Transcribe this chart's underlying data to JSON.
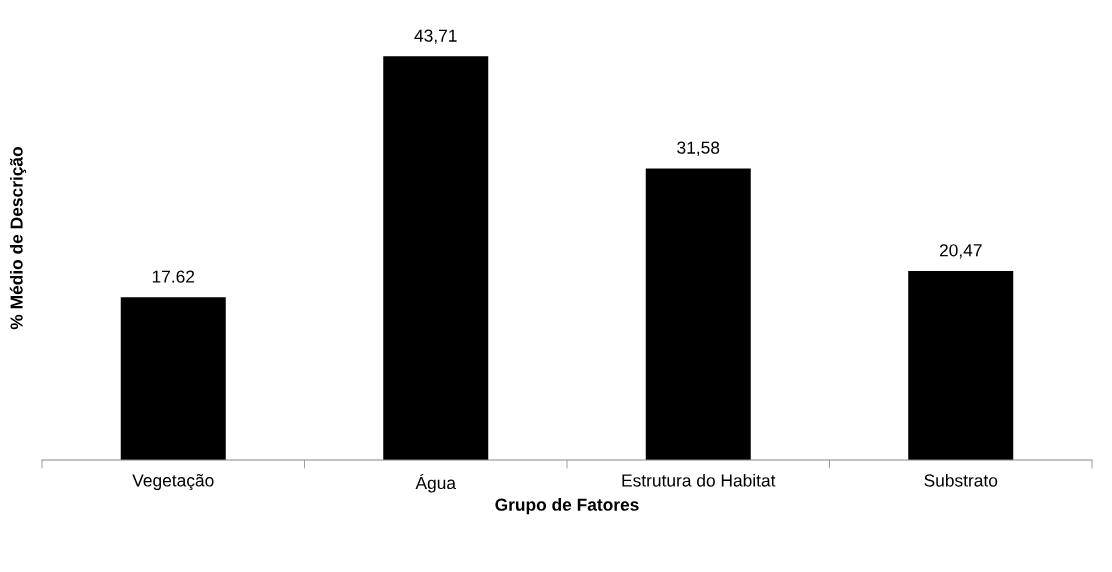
{
  "chart_data": {
    "type": "bar",
    "xlabel": "Grupo de Fatores",
    "ylabel": "% Médio de Descrição",
    "categories": [
      "Vegetação",
      "Água",
      "Estrutura do Habitat",
      "Substrato"
    ],
    "values": [
      17.62,
      43.71,
      31.58,
      20.47
    ],
    "value_labels": [
      "17.62",
      "43,71",
      "31,58",
      "20,47"
    ],
    "color": "#000000",
    "tick_labels": "x"
  }
}
